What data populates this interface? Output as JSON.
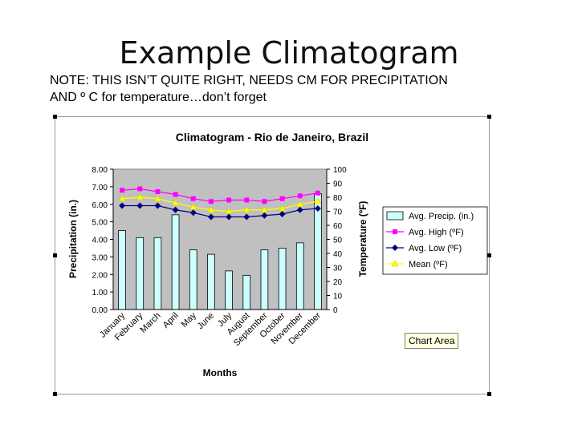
{
  "slide": {
    "title": "Example Climatogram",
    "note_line1": "NOTE: THIS ISN’T QUITE RIGHT, NEEDS CM FOR PRECIPITATION",
    "note_line2": "AND º C for temperature…don’t forget",
    "tooltip": "Chart Area"
  },
  "chart_data": {
    "type": "bar",
    "title": "Climatogram - Rio de Janeiro, Brazil",
    "xlabel": "Months",
    "ylabel": "Precipitation (in.)",
    "y2label": "Temperature (ºF)",
    "categories": [
      "January",
      "February",
      "March",
      "April",
      "May",
      "June",
      "July",
      "August",
      "September",
      "October",
      "November",
      "December"
    ],
    "ylim": [
      0,
      8
    ],
    "yticks": [
      "0.00",
      "1.00",
      "2.00",
      "3.00",
      "4.00",
      "5.00",
      "6.00",
      "7.00",
      "8.00"
    ],
    "y2lim": [
      0,
      100
    ],
    "y2ticks": [
      "0",
      "10",
      "20",
      "30",
      "40",
      "50",
      "60",
      "70",
      "80",
      "90",
      "100"
    ],
    "grid": false,
    "legend_position": "right",
    "series": [
      {
        "name": "Avg. Precip. (in.)",
        "kind": "bar",
        "axis": "left",
        "color": "#ccffff",
        "values": [
          4.5,
          4.1,
          4.1,
          5.4,
          3.4,
          3.15,
          2.2,
          1.95,
          3.4,
          3.5,
          3.8,
          6.6
        ]
      },
      {
        "name": "Avg. High (ºF)",
        "kind": "line",
        "axis": "right",
        "color": "#ff00ff",
        "marker": "square",
        "values": [
          85,
          86,
          84,
          82,
          79,
          77,
          78,
          78,
          77,
          79,
          81,
          83
        ]
      },
      {
        "name": "Avg. Low (ºF)",
        "kind": "line",
        "axis": "right",
        "color": "#000080",
        "marker": "diamond",
        "values": [
          74,
          74,
          74,
          71,
          69,
          66,
          66,
          66,
          67,
          68,
          71,
          72
        ]
      },
      {
        "name": "Mean (ºF)",
        "kind": "line",
        "axis": "right",
        "color": "#ffff00",
        "marker": "triangle",
        "values": [
          79,
          80,
          79,
          76,
          73,
          71,
          70,
          71,
          71,
          72,
          75,
          77
        ]
      }
    ]
  }
}
